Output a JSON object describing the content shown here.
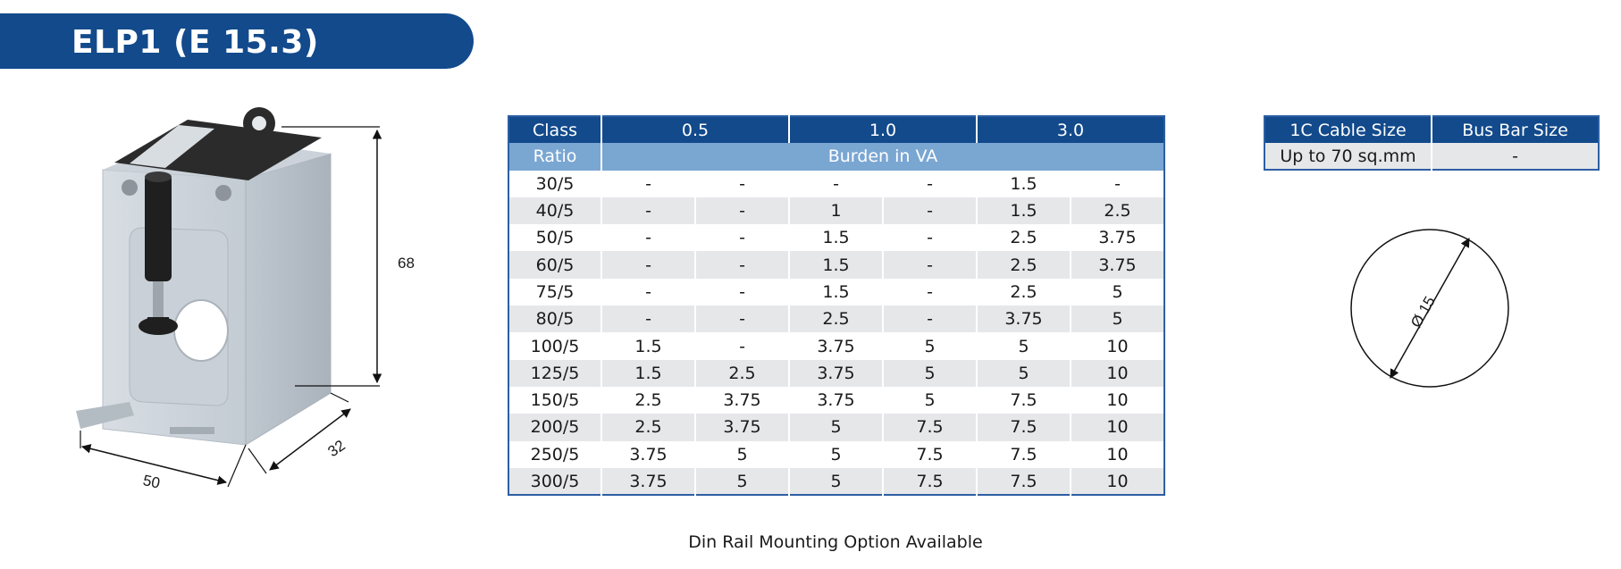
{
  "header": {
    "title": "ELP1 (E 15.3)"
  },
  "product": {
    "dim_height": "68",
    "dim_width": "50",
    "dim_depth": "32"
  },
  "burden_table": {
    "class_label": "Class",
    "classes": [
      "0.5",
      "1.0",
      "3.0"
    ],
    "ratio_label": "Ratio",
    "burden_label": "Burden in VA",
    "rows": [
      {
        "ratio": "30/5",
        "values": [
          "-",
          "-",
          "-",
          "-",
          "1.5",
          "-"
        ]
      },
      {
        "ratio": "40/5",
        "values": [
          "-",
          "-",
          "1",
          "-",
          "1.5",
          "2.5"
        ]
      },
      {
        "ratio": "50/5",
        "values": [
          "-",
          "-",
          "1.5",
          "-",
          "2.5",
          "3.75"
        ]
      },
      {
        "ratio": "60/5",
        "values": [
          "-",
          "-",
          "1.5",
          "-",
          "2.5",
          "3.75"
        ]
      },
      {
        "ratio": "75/5",
        "values": [
          "-",
          "-",
          "1.5",
          "-",
          "2.5",
          "5"
        ]
      },
      {
        "ratio": "80/5",
        "values": [
          "-",
          "-",
          "2.5",
          "-",
          "3.75",
          "5"
        ]
      },
      {
        "ratio": "100/5",
        "values": [
          "1.5",
          "-",
          "3.75",
          "5",
          "5",
          "10"
        ]
      },
      {
        "ratio": "125/5",
        "values": [
          "1.5",
          "2.5",
          "3.75",
          "5",
          "5",
          "10"
        ]
      },
      {
        "ratio": "150/5",
        "values": [
          "2.5",
          "3.75",
          "3.75",
          "5",
          "7.5",
          "10"
        ]
      },
      {
        "ratio": "200/5",
        "values": [
          "2.5",
          "3.75",
          "5",
          "7.5",
          "7.5",
          "10"
        ]
      },
      {
        "ratio": "250/5",
        "values": [
          "3.75",
          "5",
          "5",
          "7.5",
          "7.5",
          "10"
        ]
      },
      {
        "ratio": "300/5",
        "values": [
          "3.75",
          "5",
          "5",
          "7.5",
          "7.5",
          "10"
        ]
      }
    ]
  },
  "cable_table": {
    "headers": [
      "1C Cable Size",
      "Bus Bar Size"
    ],
    "values": [
      "Up to 70 sq.mm",
      "-"
    ]
  },
  "diameter_label": "Ø 15",
  "footer": "Din Rail Mounting Option Available",
  "colors": {
    "brand_blue": "#124a8c",
    "sub_header_blue": "#7aa6d2",
    "row_grey": "#e6e7e9"
  }
}
